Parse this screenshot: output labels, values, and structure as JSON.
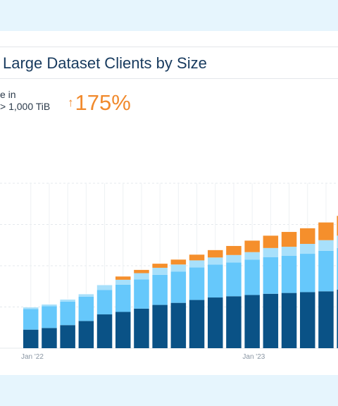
{
  "card": {
    "title": "Large Dataset Clients by Size"
  },
  "metric": {
    "label_line1": "e in",
    "label_line2": "> 1,000 TiB",
    "arrow": "↑",
    "value": "175%"
  },
  "colors": {
    "background": "#e6f5fd",
    "series": [
      "#0a5286",
      "#66c8fb",
      "#a8e0fb",
      "#f58f2c"
    ],
    "metric_accent": "#f18a2d"
  },
  "chart_data": {
    "type": "bar",
    "stacked": true,
    "categories": [
      "",
      "",
      "",
      "",
      "",
      "",
      "",
      "",
      "",
      "",
      "",
      "",
      "",
      "",
      "",
      "",
      "",
      "",
      ""
    ],
    "x_tick_labels": [
      {
        "index": 0,
        "label": "Jan '22"
      },
      {
        "index": 12,
        "label": "Jan '23"
      }
    ],
    "series": [
      {
        "values": [
          45,
          49,
          56,
          66,
          82,
          88,
          96,
          105,
          110,
          117,
          123,
          126,
          129,
          132,
          134,
          136,
          138,
          142,
          143
        ]
      },
      {
        "values": [
          50,
          53,
          57,
          59,
          59,
          66,
          71,
          73,
          76,
          79,
          80,
          82,
          86,
          89,
          90,
          93,
          98,
          101,
          107
        ]
      },
      {
        "values": [
          4,
          4,
          5,
          6,
          12,
          12,
          15,
          17,
          17,
          17,
          17,
          18,
          18,
          22,
          22,
          24,
          26,
          30,
          43
        ]
      },
      {
        "values": [
          0,
          0,
          0,
          0,
          0,
          8,
          8,
          10,
          12,
          14,
          18,
          22,
          28,
          30,
          36,
          38,
          43,
          48,
          58
        ]
      }
    ],
    "ylim": [
      0,
      400
    ],
    "grid": true
  }
}
